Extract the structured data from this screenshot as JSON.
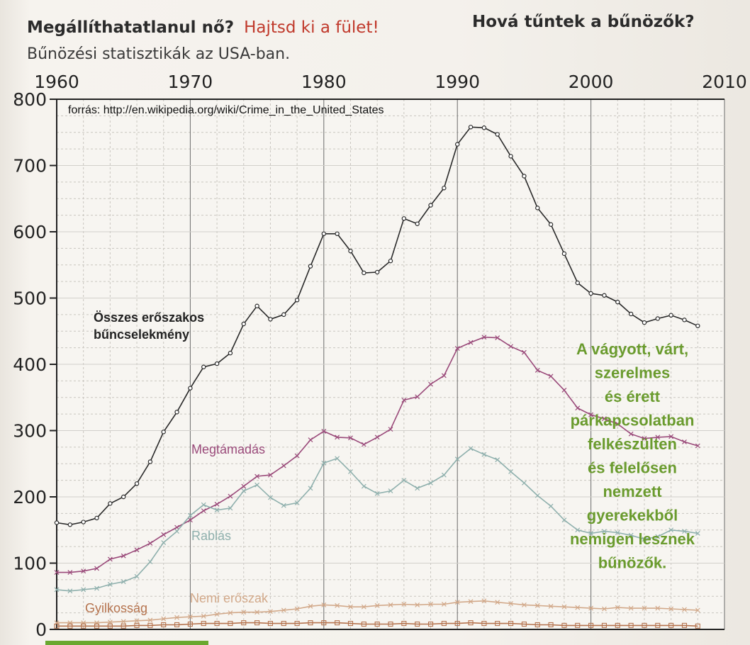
{
  "header": {
    "title": "Megállíthatatlanul nő?",
    "title_cta": "Hajtsd ki a fület!",
    "right_title": "Hová tűntek a bűnözők?",
    "subtitle": "Bűnözési statisztikák az USA-ban."
  },
  "chart_data": {
    "type": "line",
    "title": "",
    "source_note": "forrás: http://en.wikipedia.org/wiki/Crime_in_the_United_States",
    "x_ticks": [
      "1960",
      "1970",
      "1980",
      "1990",
      "2000",
      "2010"
    ],
    "y_ticks": [
      "0",
      "100",
      "200",
      "300",
      "400",
      "500",
      "600",
      "700",
      "800"
    ],
    "xlim": [
      1960,
      2010
    ],
    "ylim": [
      0,
      800
    ],
    "grid": true,
    "x": [
      1960,
      1961,
      1962,
      1963,
      1964,
      1965,
      1966,
      1967,
      1968,
      1969,
      1970,
      1971,
      1972,
      1973,
      1974,
      1975,
      1976,
      1977,
      1978,
      1979,
      1980,
      1981,
      1982,
      1983,
      1984,
      1985,
      1986,
      1987,
      1988,
      1989,
      1990,
      1991,
      1992,
      1993,
      1994,
      1995,
      1996,
      1997,
      1998,
      1999,
      2000,
      2001,
      2002,
      2003,
      2004,
      2005,
      2006,
      2007,
      2008
    ],
    "series": [
      {
        "name": "Összes erőszakos bűncselekmény",
        "label_lines": [
          "Összes erőszakos",
          "bűncselekmény"
        ],
        "color": "#2a2a2a",
        "marker": "circle",
        "values": [
          161,
          158,
          162,
          168,
          190,
          200,
          220,
          253,
          298,
          328,
          364,
          396,
          401,
          417,
          461,
          488,
          468,
          475,
          497,
          548,
          597,
          597,
          571,
          538,
          539,
          556,
          620,
          612,
          640,
          666,
          732,
          758,
          757,
          747,
          714,
          684,
          636,
          611,
          567,
          523,
          507,
          504,
          494,
          476,
          463,
          469,
          474,
          467,
          458
        ]
      },
      {
        "name": "Megtámadás",
        "label_lines": [
          "Megtámadás"
        ],
        "color": "#9a4a7a",
        "marker": "x",
        "values": [
          86,
          86,
          88,
          92,
          106,
          111,
          120,
          130,
          143,
          154,
          165,
          179,
          189,
          201,
          216,
          231,
          233,
          247,
          262,
          286,
          299,
          290,
          289,
          279,
          290,
          302,
          346,
          351,
          370,
          383,
          424,
          433,
          441,
          440,
          427,
          418,
          391,
          382,
          361,
          334,
          324,
          318,
          310,
          295,
          288,
          290,
          291,
          283,
          277
        ]
      },
      {
        "name": "Rablás",
        "label_lines": [
          "Rablás"
        ],
        "color": "#8fb0ad",
        "marker": "x",
        "values": [
          60,
          58,
          60,
          62,
          68,
          72,
          80,
          102,
          131,
          148,
          172,
          188,
          180,
          183,
          209,
          218,
          199,
          187,
          191,
          213,
          251,
          258,
          238,
          216,
          205,
          209,
          225,
          213,
          221,
          233,
          257,
          273,
          264,
          256,
          238,
          221,
          202,
          186,
          165,
          150,
          145,
          148,
          146,
          142,
          136,
          140,
          150,
          148,
          145
        ]
      },
      {
        "name": "Nemi erőszak",
        "label_lines": [
          "Nemi erőszak"
        ],
        "color": "#d2a98a",
        "marker": "x",
        "values": [
          10,
          10,
          10,
          10,
          11,
          12,
          13,
          14,
          16,
          18,
          19,
          20,
          23,
          25,
          26,
          26,
          27,
          29,
          31,
          35,
          37,
          36,
          34,
          34,
          36,
          37,
          38,
          37,
          38,
          38,
          41,
          42,
          43,
          41,
          39,
          37,
          36,
          35,
          34,
          33,
          32,
          31,
          33,
          32,
          32,
          32,
          31,
          30,
          29
        ]
      },
      {
        "name": "Gyilkosság",
        "label_lines": [
          "Gyilkosság"
        ],
        "color": "#b5734e",
        "marker": "square",
        "values": [
          5,
          5,
          5,
          5,
          5,
          5,
          6,
          6,
          7,
          7,
          8,
          9,
          9,
          9,
          10,
          10,
          9,
          9,
          9,
          10,
          10,
          10,
          9,
          8,
          8,
          8,
          9,
          8,
          8,
          9,
          9,
          10,
          9,
          9,
          9,
          8,
          7,
          7,
          6,
          6,
          6,
          6,
          6,
          6,
          6,
          6,
          6,
          6,
          5
        ]
      }
    ],
    "annotation": {
      "color": "#6a9b2e",
      "lines": [
        "A vágyott, várt,",
        "szerelmes",
        "és érett",
        "párkapcsolatban",
        "felkészülten",
        "és felelősen",
        "nemzett",
        "gyerekekből",
        "nemigen lesznek",
        "bűnözők."
      ]
    }
  }
}
